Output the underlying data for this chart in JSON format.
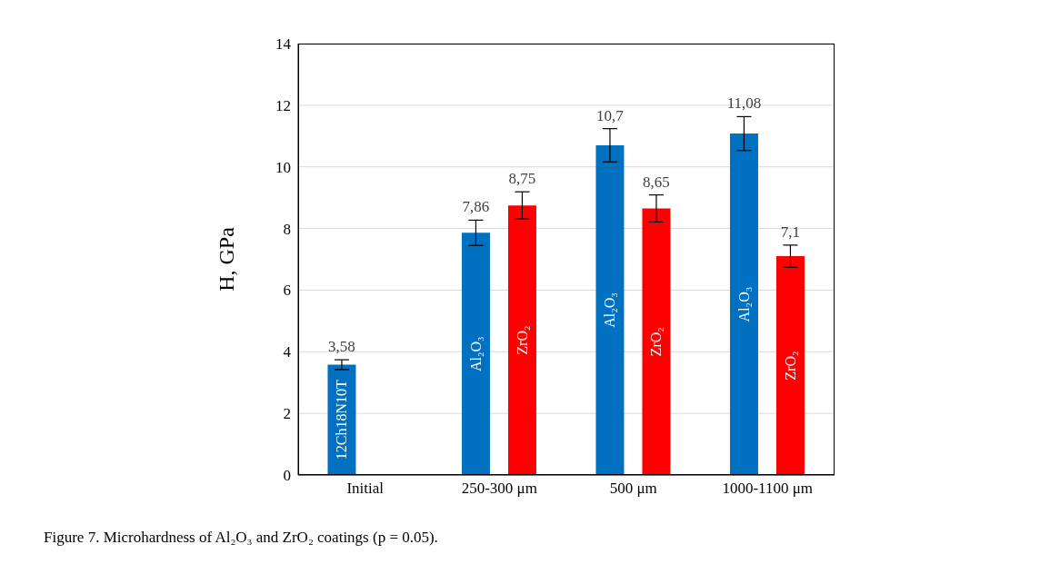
{
  "chart_data": {
    "type": "bar",
    "ylabel": "H, GPa",
    "categories": [
      "Initial",
      "250-300 μm",
      "500 μm",
      "1000-1100 μm"
    ],
    "series": [
      {
        "color": "#0070c0",
        "values": [
          3.58,
          7.86,
          10.7,
          11.08
        ],
        "errors": [
          0.16,
          0.41,
          0.54,
          0.55
        ],
        "value_labels": [
          "3,58",
          "7,86",
          "10,7",
          "11,08"
        ]
      },
      {
        "color": "#ff0000",
        "values": [
          null,
          8.75,
          8.65,
          7.1
        ],
        "errors": [
          null,
          0.44,
          0.44,
          0.36
        ],
        "value_labels": [
          null,
          "8,75",
          "8,65",
          "7,1"
        ]
      }
    ],
    "ylim": [
      0,
      14
    ],
    "yticks": [
      0,
      2,
      4,
      6,
      8,
      10,
      12,
      14
    ],
    "grid": "y",
    "legend": false,
    "annotations": [
      "12Ch18N10T",
      "Al₂O₃",
      "ZrO₂",
      "Al₂O₃",
      "ZrO₂",
      "Al₂O₃",
      "ZrO₂",
      "Figure 7. Microhardness of Al₂O₃ and ZrO₂ coatings (p = 0.05)."
    ]
  }
}
